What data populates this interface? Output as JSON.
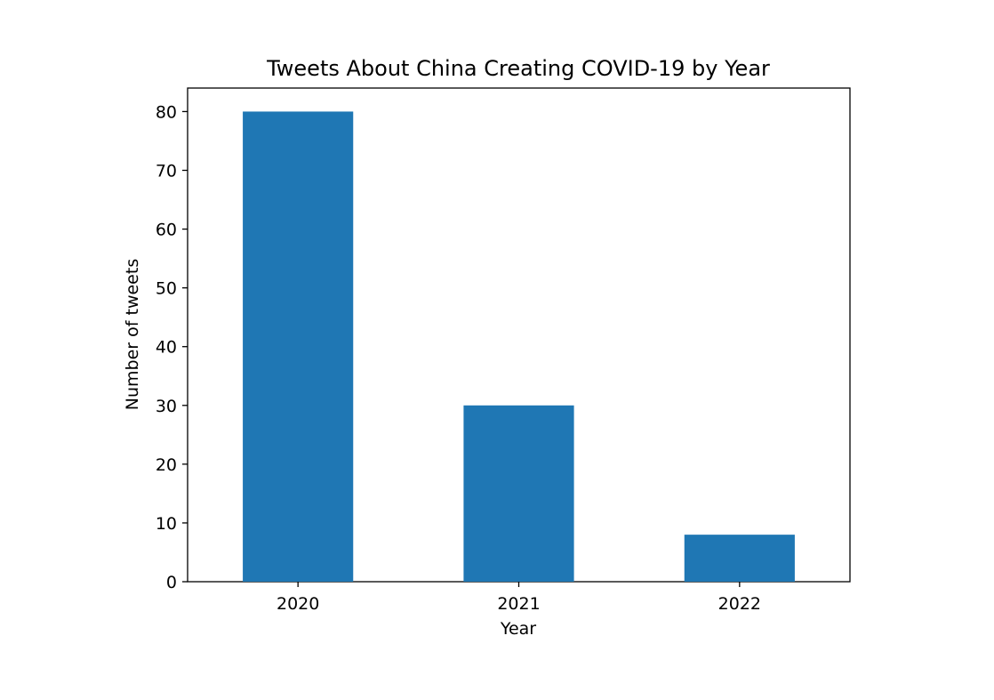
{
  "chart_data": {
    "type": "bar",
    "title": "Tweets About China Creating COVID-19 by Year",
    "xlabel": "Year",
    "ylabel": "Number of tweets",
    "categories": [
      "2020",
      "2021",
      "2022"
    ],
    "values": [
      80,
      30,
      8
    ],
    "ylim": [
      0,
      84
    ],
    "yticks": [
      0,
      10,
      20,
      30,
      40,
      50,
      60,
      70,
      80
    ],
    "bar_color": "#1f77b4",
    "grid": false,
    "legend": null
  }
}
